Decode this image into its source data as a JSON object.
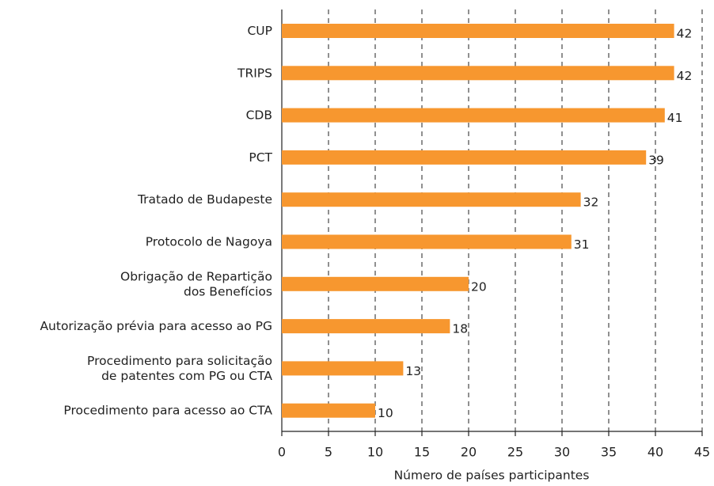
{
  "chart_data": {
    "type": "barh",
    "categories": [
      "CUP",
      "TRIPS",
      "CDB",
      "PCT",
      "Tratado de Budapeste",
      "Protocolo de Nagoya",
      "Obrigação de Repartição\ndos Benefícios",
      "Autorização prévia para acesso ao PG",
      "Procedimento para solicitação\nde patentes com PG ou CTA",
      "Procedimento para acesso ao CTA"
    ],
    "values": [
      42,
      42,
      41,
      39,
      32,
      31,
      20,
      18,
      13,
      10
    ],
    "color": "#f7972f",
    "xlabel": "Número de países participantes",
    "xlim": [
      0,
      45
    ],
    "xticks": [
      0,
      5,
      10,
      15,
      20,
      25,
      30,
      35,
      40,
      45
    ],
    "grid": true
  }
}
